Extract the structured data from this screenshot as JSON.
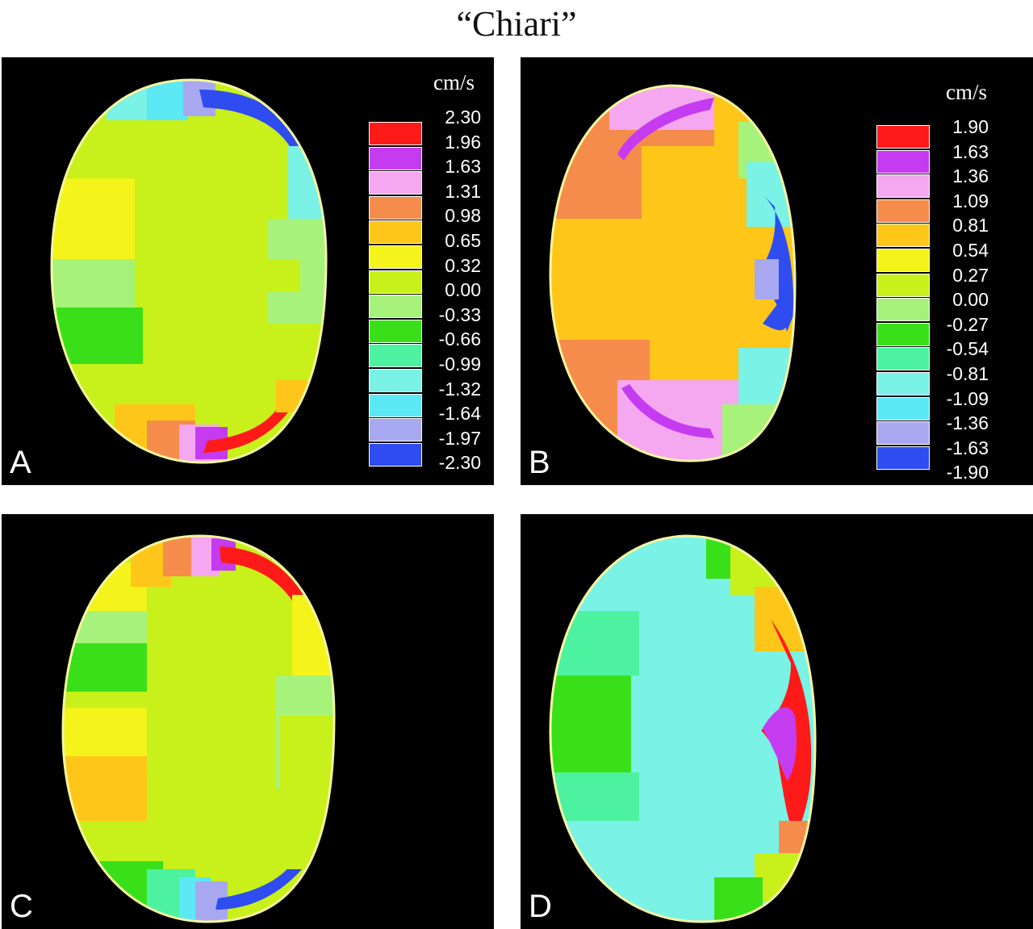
{
  "title": "“Chiari”",
  "panels": [
    {
      "letter": "A",
      "legend": {
        "unit": "cm/s",
        "labels": [
          "2.30",
          "1.96",
          "1.63",
          "1.31",
          "0.98",
          "0.65",
          "0.32",
          "0.00",
          "-0.33",
          "-0.66",
          "-0.99",
          "-1.32",
          "-1.64",
          "-1.97",
          "-2.30"
        ]
      }
    },
    {
      "letter": "B",
      "legend": {
        "unit": "cm/s",
        "labels": [
          "1.90",
          "1.63",
          "1.36",
          "1.09",
          "0.81",
          "0.54",
          "0.27",
          "0.00",
          "-0.27",
          "-0.54",
          "-0.81",
          "-1.09",
          "-1.36",
          "-1.63",
          "-1.90"
        ]
      }
    },
    {
      "letter": "C"
    },
    {
      "letter": "D"
    }
  ],
  "colors": {
    "scale": [
      "#ff1a1a",
      "#c53cf0",
      "#f5a7f0",
      "#f58c4c",
      "#ffc61a",
      "#f4f41a",
      "#c8f01a",
      "#a6f27a",
      "#39e01a",
      "#4cf2a0",
      "#7af2e6",
      "#5ce8f5",
      "#a8a8f0",
      "#2e4cf0"
    ],
    "rim": "#f5f5a0"
  }
}
